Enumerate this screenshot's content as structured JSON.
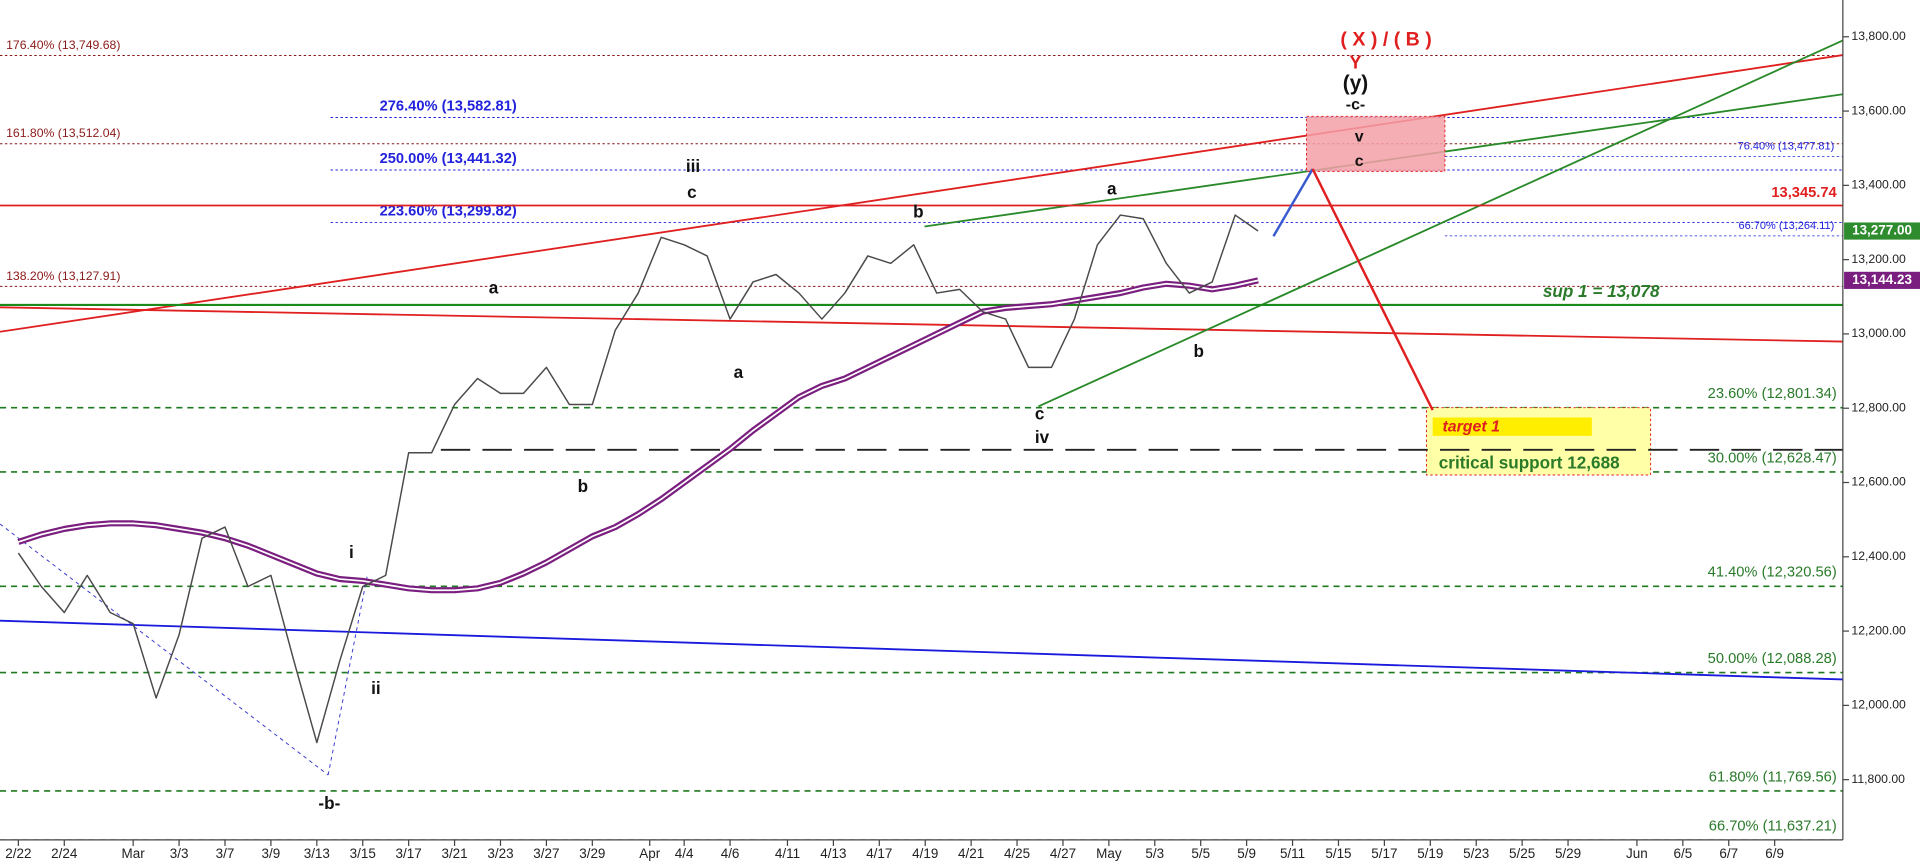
{
  "chart_data": {
    "type": "line",
    "x": [
      0,
      1,
      2,
      3,
      4,
      5,
      6,
      7,
      8,
      9,
      10,
      11,
      12,
      13,
      14,
      15,
      16,
      17,
      18,
      19,
      20,
      21,
      22,
      23,
      24,
      25,
      26,
      27,
      28,
      29,
      30,
      31,
      32,
      33,
      34,
      35,
      36,
      37,
      38,
      39,
      40,
      41,
      42,
      43,
      44,
      45,
      46,
      47,
      48,
      49,
      50,
      51,
      52,
      53,
      54
    ],
    "series": [
      {
        "name": "price",
        "color": "#4a4a4a",
        "values": [
          12410,
          12320,
          12250,
          12350,
          12250,
          12220,
          12020,
          12190,
          12450,
          12480,
          12320,
          12350,
          12120,
          11900,
          12120,
          12320,
          12350,
          12680,
          12680,
          12810,
          12880,
          12840,
          12840,
          12910,
          12810,
          12810,
          13010,
          13110,
          13260,
          13240,
          13210,
          13040,
          13140,
          13160,
          13110,
          13040,
          13110,
          13210,
          13190,
          13240,
          13110,
          13120,
          13060,
          13040,
          12910,
          12910,
          13040,
          13240,
          13320,
          13310,
          13190,
          13110,
          13140,
          13320,
          13277
        ]
      },
      {
        "name": "moving average",
        "color": "#7a1f7f",
        "values": [
          12440,
          12460,
          12475,
          12485,
          12490,
          12490,
          12485,
          12475,
          12465,
          12450,
          12430,
          12405,
          12380,
          12355,
          12340,
          12335,
          12325,
          12315,
          12310,
          12310,
          12315,
          12330,
          12355,
          12385,
          12420,
          12455,
          12480,
          12515,
          12555,
          12600,
          12645,
          12690,
          12740,
          12785,
          12830,
          12860,
          12880,
          12910,
          12940,
          12970,
          13000,
          13030,
          13060,
          13070,
          13075,
          13080,
          13090,
          13100,
          13110,
          13125,
          13135,
          13130,
          13120,
          13130,
          13144.23
        ]
      }
    ],
    "xlim": [
      -0.8,
      79.47
    ],
    "ylim": [
      11638,
      13899
    ],
    "xticks": [
      {
        "value": 0,
        "label": "2/22"
      },
      {
        "value": 2,
        "label": "2/24"
      },
      {
        "value": 5,
        "label": "Mar"
      },
      {
        "value": 7,
        "label": "3/3"
      },
      {
        "value": 9,
        "label": "3/7"
      },
      {
        "value": 11,
        "label": "3/9"
      },
      {
        "value": 13,
        "label": "3/13"
      },
      {
        "value": 15,
        "label": "3/15"
      },
      {
        "value": 17,
        "label": "3/17"
      },
      {
        "value": 19,
        "label": "3/21"
      },
      {
        "value": 21,
        "label": "3/23"
      },
      {
        "value": 23,
        "label": "3/27"
      },
      {
        "value": 25,
        "label": "3/29"
      },
      {
        "value": 27.5,
        "label": "Apr"
      },
      {
        "value": 29,
        "label": "4/4"
      },
      {
        "value": 31,
        "label": "4/6"
      },
      {
        "value": 33.5,
        "label": "4/11"
      },
      {
        "value": 35.5,
        "label": "4/13"
      },
      {
        "value": 37.5,
        "label": "4/17"
      },
      {
        "value": 39.5,
        "label": "4/19"
      },
      {
        "value": 41.5,
        "label": "4/21"
      },
      {
        "value": 43.5,
        "label": "4/25"
      },
      {
        "value": 45.5,
        "label": "4/27"
      },
      {
        "value": 47.5,
        "label": "May"
      },
      {
        "value": 49.5,
        "label": "5/3"
      },
      {
        "value": 51.5,
        "label": "5/5"
      },
      {
        "value": 53.5,
        "label": "5/9"
      },
      {
        "value": 55.5,
        "label": "5/11"
      },
      {
        "value": 57.5,
        "label": "5/15"
      },
      {
        "value": 59.5,
        "label": "5/17"
      },
      {
        "value": 61.5,
        "label": "5/19"
      },
      {
        "value": 63.5,
        "label": "5/23"
      },
      {
        "value": 65.5,
        "label": "5/25"
      },
      {
        "value": 67.5,
        "label": "5/29"
      },
      {
        "value": 70.5,
        "label": "Jun"
      },
      {
        "value": 72.5,
        "label": "6/5"
      },
      {
        "value": 74.5,
        "label": "6/7"
      },
      {
        "value": 76.5,
        "label": "6/9"
      }
    ],
    "yticks": [
      {
        "value": 11800,
        "label": "11,800.00"
      },
      {
        "value": 12000,
        "label": "12,000.00"
      },
      {
        "value": 12200,
        "label": "12,200.00"
      },
      {
        "value": 12400,
        "label": "12,400.00"
      },
      {
        "value": 12600,
        "label": "12,600.00"
      },
      {
        "value": 12800,
        "label": "12,800.00"
      },
      {
        "value": 13000,
        "label": "13,000.00"
      },
      {
        "value": 13200,
        "label": "13,200.00"
      },
      {
        "value": 13400,
        "label": "13,400.00"
      },
      {
        "value": 13600,
        "label": "13,600.00"
      },
      {
        "value": 13800,
        "label": "13,800.00"
      }
    ],
    "fib_left": [
      {
        "value": 13749.68,
        "label": "176.40% (13,749.68)"
      },
      {
        "value": 13512.04,
        "label": "161.80% (13,512.04)"
      },
      {
        "value": 13127.91,
        "label": "138.20% (13,127.91)"
      }
    ],
    "fib_blue": [
      {
        "value": 13582.81,
        "label": "276.40% (13,582.81)"
      },
      {
        "value": 13441.32,
        "label": "250.00% (13,441.32)"
      },
      {
        "value": 13299.82,
        "label": "223.60% (13,299.82)"
      }
    ],
    "fib_right_blue": [
      {
        "value": 13477.81,
        "label": "76.40% (13,477.81)"
      },
      {
        "value": 13264.11,
        "label": "66.70% (13,264.11)"
      }
    ],
    "fib_green": [
      {
        "value": 12801.34,
        "label": "23.60% (12,801.34)"
      },
      {
        "value": 12628.47,
        "label": "30.00% (12,628.47)"
      },
      {
        "value": 12320.56,
        "label": "41.40% (12,320.56)"
      },
      {
        "value": 12088.28,
        "label": "50.00% (12,088.28)"
      },
      {
        "value": 11769.56,
        "label": "61.80% (11,769.56)"
      },
      {
        "value": 11637.21,
        "label": "66.70% (11,637.21)"
      }
    ],
    "resistance": {
      "value": 13345.74,
      "label": "13,345.74"
    },
    "support": {
      "value": 13078,
      "label": "sup 1 = 13,078"
    },
    "critical_support": {
      "value": 12688,
      "label": "critical support 12,688"
    },
    "target_label": "target 1",
    "last_price": {
      "value": 13277,
      "label": "13,277.00"
    },
    "ma_last": {
      "value": 13144.23,
      "label": "13,144.23"
    },
    "wave_labels": [
      "( X ) / ( B )",
      "Y",
      "(y)",
      "-c-",
      "v",
      "c",
      "iii",
      "c",
      "b",
      "a",
      "a",
      "a",
      "b",
      "c",
      "iv",
      "b",
      "i",
      "ii",
      "-b-"
    ],
    "grid": false
  }
}
